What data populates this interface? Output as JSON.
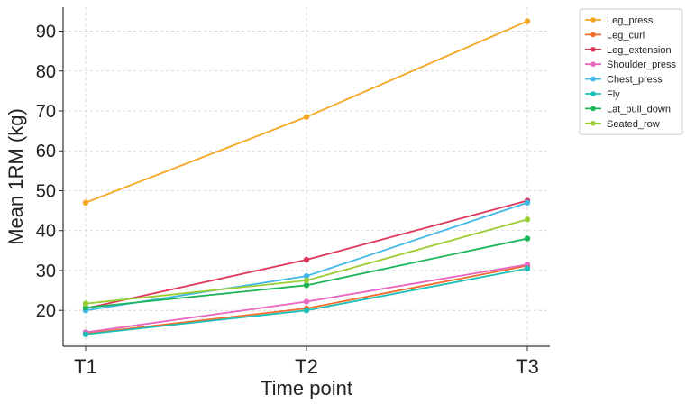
{
  "chart_data": {
    "type": "line",
    "title": "",
    "xlabel": "Time point",
    "ylabel": "Mean 1RM (kg)",
    "categories": [
      "T1",
      "T2",
      "T3"
    ],
    "ylim": [
      11,
      96
    ],
    "yticks": [
      20,
      30,
      40,
      50,
      60,
      70,
      80,
      90
    ],
    "grid": true,
    "legend": "top-right-outside",
    "series": [
      {
        "name": "Leg_press",
        "color": "#f5a623",
        "values": [
          47.0,
          68.5,
          92.5
        ]
      },
      {
        "name": "Leg_curl",
        "color": "#f26b2b",
        "values": [
          14.2,
          20.5,
          31.2
        ]
      },
      {
        "name": "Leg_extension",
        "color": "#e0385a",
        "values": [
          20.5,
          32.7,
          47.5
        ]
      },
      {
        "name": "Shoulder_press",
        "color": "#e865c0",
        "values": [
          14.5,
          22.2,
          31.5
        ]
      },
      {
        "name": "Chest_press",
        "color": "#3fb8e8",
        "values": [
          20.0,
          28.6,
          47.0
        ]
      },
      {
        "name": "Fly",
        "color": "#1cc0b8",
        "values": [
          14.0,
          20.0,
          30.5
        ]
      },
      {
        "name": "Lat_pull_down",
        "color": "#1db55a",
        "values": [
          20.7,
          26.3,
          38.0
        ]
      },
      {
        "name": "Seated_row",
        "color": "#9acd32",
        "values": [
          21.7,
          27.5,
          42.8
        ]
      }
    ]
  }
}
